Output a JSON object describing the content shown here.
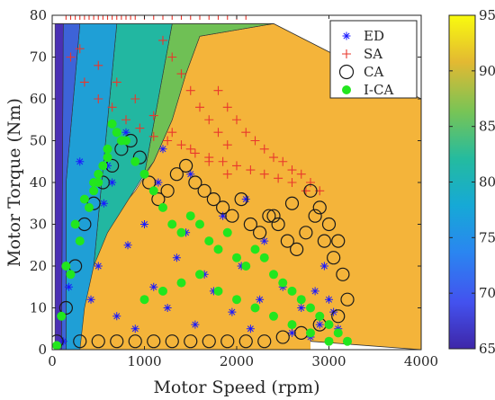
{
  "chart_data": {
    "type": "scatter",
    "title": "",
    "xlabel": "Motor Speed (rpm)",
    "ylabel": "Motor Torque (Nm)",
    "xlim": [
      0,
      4000
    ],
    "ylim": [
      0,
      80
    ],
    "xticks": [
      0,
      1000,
      2000,
      3000,
      4000
    ],
    "yticks": [
      0,
      10,
      20,
      30,
      40,
      50,
      60,
      70,
      80
    ],
    "grid": false,
    "legend_position": "top-right",
    "background": {
      "type": "efficiency-contour",
      "colormap": "parula",
      "clim": [
        65,
        95
      ],
      "colorbar_ticks": [
        65,
        70,
        75,
        80,
        85,
        90,
        95
      ],
      "regions": [
        {
          "level": 91,
          "color": "#f4b43a",
          "boundary": [
            [
              2000,
              0
            ],
            [
              4000,
              0
            ],
            [
              4000,
              60
            ],
            [
              2400,
              78
            ],
            [
              1600,
              75
            ],
            [
              1450,
              66
            ],
            [
              1300,
              55
            ],
            [
              1100,
              45
            ],
            [
              900,
              38
            ],
            [
              600,
              30
            ],
            [
              400,
              20
            ],
            [
              300,
              10
            ],
            [
              250,
              0
            ]
          ]
        },
        {
          "level": 86,
          "color": "#6fc055",
          "boundary": [
            [
              1300,
              78
            ],
            [
              2400,
              78
            ],
            [
              1600,
              75
            ],
            [
              1450,
              66
            ],
            [
              1300,
              55
            ],
            [
              1100,
              45
            ],
            [
              1000,
              42
            ]
          ]
        },
        {
          "level": 82,
          "color": "#22b7a1",
          "boundary": [
            [
              700,
              78
            ],
            [
              1300,
              78
            ],
            [
              1000,
              42
            ],
            [
              800,
              35
            ],
            [
              600,
              28
            ],
            [
              450,
              20
            ]
          ]
        },
        {
          "level": 77,
          "color": "#1f9fd6",
          "boundary": [
            [
              300,
              78
            ],
            [
              700,
              78
            ],
            [
              450,
              20
            ],
            [
              350,
              10
            ],
            [
              300,
              0
            ],
            [
              150,
              0
            ],
            [
              150,
              40
            ]
          ]
        },
        {
          "level": 71,
          "color": "#3d63d8",
          "boundary": [
            [
              120,
              78
            ],
            [
              300,
              78
            ],
            [
              150,
              40
            ],
            [
              150,
              0
            ],
            [
              100,
              0
            ]
          ]
        },
        {
          "level": 67,
          "color": "#4b30b4",
          "boundary": [
            [
              30,
              78
            ],
            [
              120,
              78
            ],
            [
              100,
              0
            ],
            [
              30,
              0
            ]
          ]
        }
      ],
      "operating_envelope": {
        "upper": [
          [
            0,
            78
          ],
          [
            2400,
            78
          ],
          [
            4000,
            60
          ]
        ],
        "lower": [
          [
            2800,
            2
          ],
          [
            4000,
            0
          ]
        ]
      }
    },
    "series": [
      {
        "name": "ED",
        "marker": "asterisk",
        "color": "#1a1aff",
        "x": [
          120,
          180,
          250,
          300,
          420,
          500,
          560,
          650,
          700,
          820,
          900,
          1000,
          1100,
          1150,
          1250,
          1350,
          1450,
          1550,
          1650,
          1750,
          1850,
          1950,
          2050,
          2150,
          2250,
          2300,
          2400,
          2500,
          2600,
          2700,
          2800,
          2900,
          3000,
          3050,
          3100,
          2950,
          2850,
          1200,
          800,
          600,
          1500,
          2100
        ],
        "y": [
          2,
          15,
          30,
          45,
          12,
          20,
          35,
          40,
          8,
          25,
          5,
          30,
          15,
          40,
          10,
          22,
          28,
          6,
          18,
          14,
          32,
          9,
          20,
          5,
          12,
          26,
          8,
          15,
          4,
          10,
          3,
          6,
          12,
          9,
          5,
          20,
          14,
          48,
          52,
          44,
          42,
          36
        ]
      },
      {
        "name": "SA",
        "marker": "plus",
        "color": "#e8372c",
        "x": [
          150,
          200,
          250,
          300,
          350,
          400,
          450,
          500,
          550,
          600,
          650,
          700,
          750,
          800,
          850,
          900,
          1000,
          1100,
          1200,
          1300,
          1400,
          1500,
          1600,
          1700,
          1800,
          1900,
          2000,
          2100,
          200,
          350,
          500,
          650,
          800,
          950,
          1100,
          1250,
          1400,
          1550,
          1700,
          1850,
          2000,
          2150,
          2300,
          2450,
          2600,
          2750,
          1800,
          1900,
          2000,
          2100,
          2200,
          2300,
          2400,
          2500,
          2600,
          2700,
          2800,
          2900,
          1200,
          1300,
          1400,
          1500,
          1600,
          1700,
          1800,
          1900,
          300,
          500,
          700,
          900,
          1100,
          1300,
          1500,
          1700,
          1900
        ],
        "y": [
          80,
          80,
          80,
          80,
          80,
          80,
          80,
          80,
          80,
          80,
          80,
          80,
          80,
          80,
          80,
          80,
          80,
          80,
          80,
          80,
          80,
          80,
          80,
          80,
          80,
          80,
          80,
          80,
          70,
          64,
          60,
          58,
          55,
          53,
          51,
          50,
          49,
          47,
          46,
          45,
          44,
          43,
          42,
          41,
          40,
          38,
          62,
          58,
          55,
          52,
          50,
          48,
          46,
          45,
          43,
          42,
          40,
          38,
          74,
          70,
          66,
          62,
          58,
          55,
          52,
          49,
          72,
          68,
          64,
          60,
          56,
          52,
          48,
          45,
          42
        ]
      },
      {
        "name": "CA",
        "marker": "circle",
        "color": "#1a1a1a",
        "x": [
          50,
          150,
          250,
          350,
          450,
          550,
          650,
          750,
          850,
          950,
          1050,
          1150,
          1250,
          1350,
          1450,
          1550,
          1650,
          1750,
          1850,
          1950,
          2050,
          2150,
          2250,
          2350,
          2450,
          2550,
          2650,
          2750,
          2850,
          2950,
          3050,
          3150,
          3200,
          3100,
          2900,
          2700,
          2500,
          2300,
          2100,
          1900,
          1700,
          1500,
          1300,
          1100,
          900,
          700,
          500,
          300,
          2900,
          3000,
          3100,
          2800,
          2600,
          2400
        ],
        "y": [
          2,
          10,
          20,
          30,
          35,
          40,
          44,
          48,
          50,
          46,
          40,
          36,
          38,
          42,
          44,
          40,
          38,
          36,
          34,
          32,
          36,
          30,
          28,
          32,
          30,
          26,
          24,
          28,
          32,
          26,
          22,
          18,
          12,
          8,
          6,
          4,
          3,
          2,
          2,
          2,
          2,
          2,
          2,
          2,
          2,
          2,
          2,
          2,
          34,
          30,
          26,
          38,
          35,
          32
        ]
      },
      {
        "name": "I-CA",
        "marker": "dot",
        "color": "#22e61e",
        "x": [
          50,
          100,
          200,
          300,
          400,
          500,
          600,
          700,
          800,
          900,
          1000,
          1100,
          1200,
          1300,
          1400,
          1500,
          1600,
          1700,
          1800,
          1900,
          2000,
          2100,
          2200,
          2300,
          2400,
          2500,
          2600,
          2700,
          2800,
          2900,
          3000,
          3100,
          3200,
          650,
          700,
          750,
          600,
          550,
          500,
          450,
          1000,
          1200,
          1400,
          1600,
          1800,
          2000,
          2200,
          2400,
          2600,
          2800,
          3000,
          150,
          250,
          350,
          450
        ],
        "y": [
          1,
          8,
          18,
          26,
          34,
          40,
          48,
          52,
          50,
          45,
          42,
          38,
          34,
          30,
          28,
          32,
          30,
          26,
          24,
          28,
          22,
          20,
          24,
          22,
          18,
          16,
          14,
          12,
          10,
          8,
          6,
          4,
          2,
          54,
          52,
          50,
          46,
          44,
          42,
          40,
          12,
          14,
          16,
          18,
          14,
          12,
          10,
          8,
          6,
          4,
          2,
          20,
          30,
          36,
          38
        ]
      }
    ]
  }
}
